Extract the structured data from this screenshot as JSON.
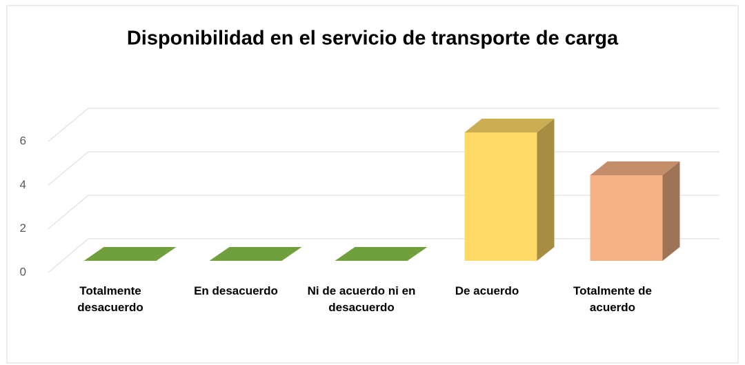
{
  "chart_data": {
    "type": "bar3d",
    "title": "Disponibilidad en el servicio  de  transporte de carga",
    "categories": [
      "Totalmente desacuerdo",
      "En desacuerdo",
      "Ni de acuerdo ni en desacuerdo",
      "De acuerdo",
      "Totalmente de acuerdo"
    ],
    "values": [
      0,
      0,
      0,
      6,
      4
    ],
    "colors": [
      "#70a03c",
      "#70a03c",
      "#70a03c",
      "#ffd966",
      "#f4b183"
    ],
    "ylim": [
      0,
      6
    ],
    "yticks": [
      0,
      2,
      4,
      6
    ],
    "grid": true
  }
}
